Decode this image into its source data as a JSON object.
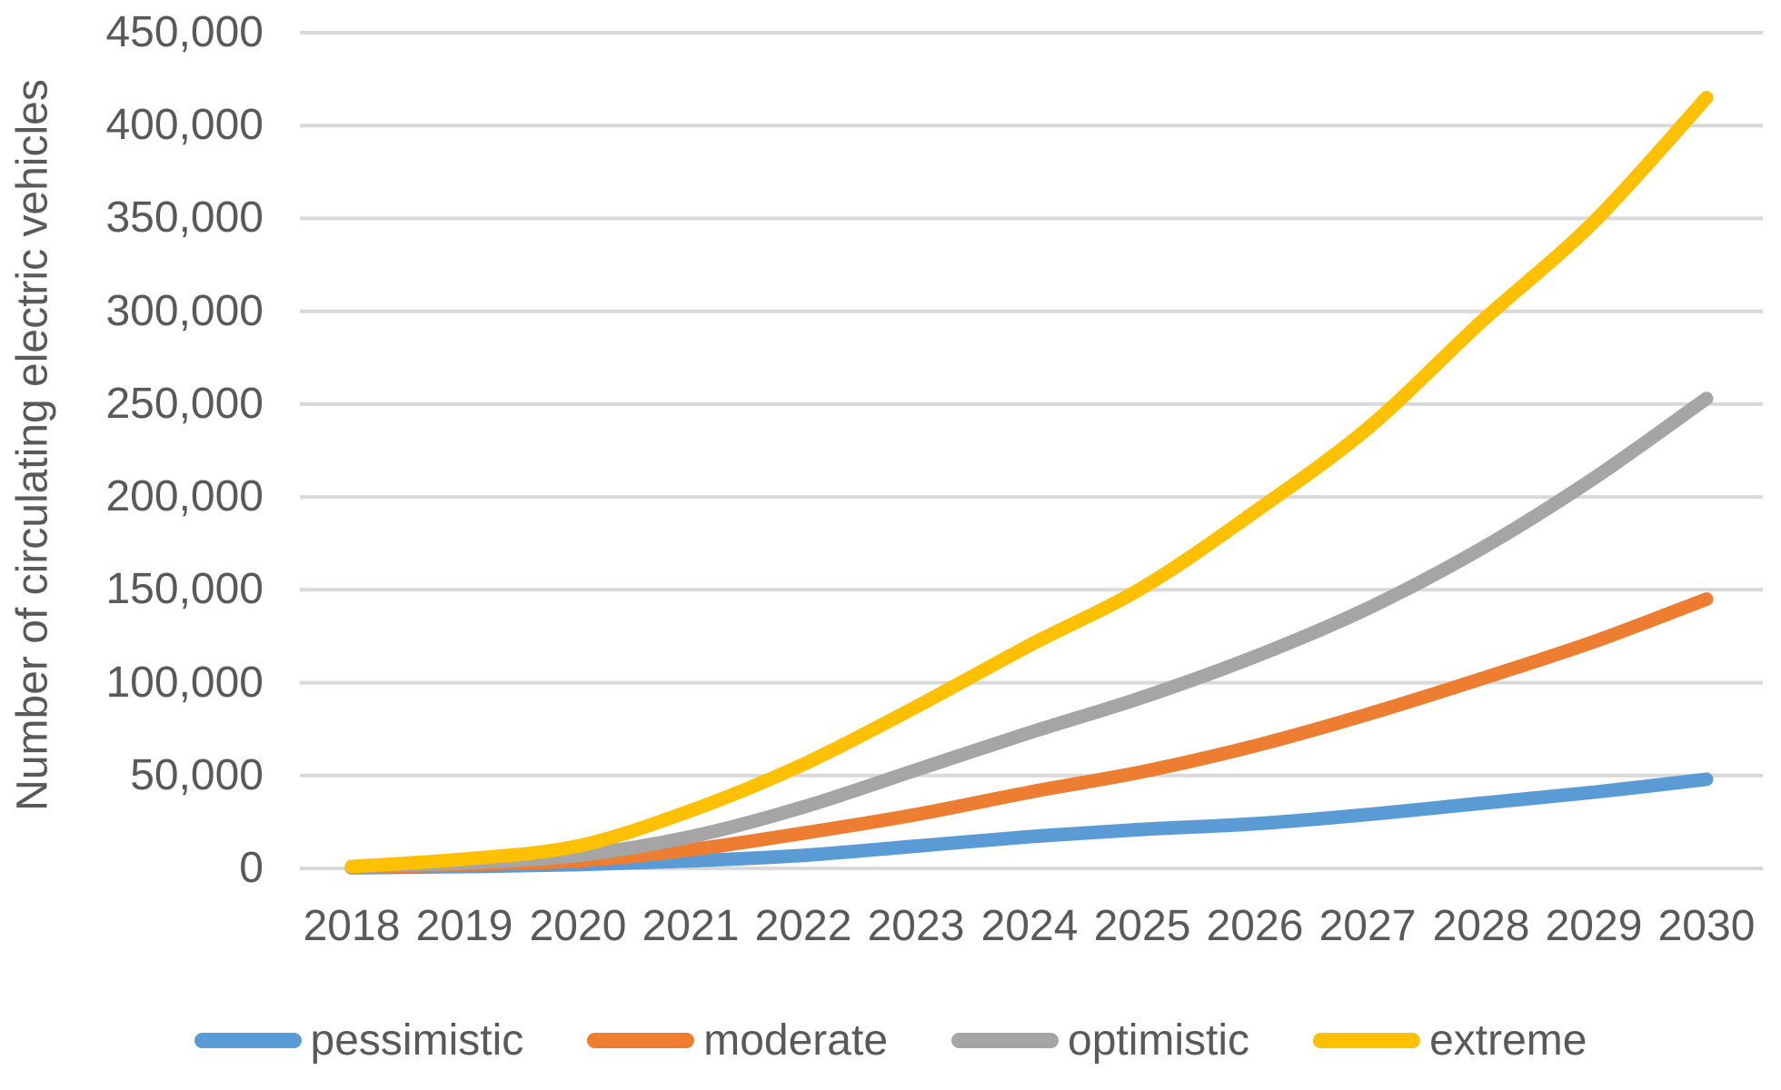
{
  "chart_data": {
    "type": "line",
    "title": "",
    "ylabel": "Number of circulating electric vehicles",
    "xlabel": "",
    "categories": [
      "2018",
      "2019",
      "2020",
      "2021",
      "2022",
      "2023",
      "2024",
      "2025",
      "2026",
      "2027",
      "2028",
      "2029",
      "2030"
    ],
    "series": [
      {
        "name": "pessimistic",
        "color": "#5B9BD5",
        "values": [
          300,
          1000,
          2000,
          4000,
          7000,
          12000,
          17000,
          21000,
          24000,
          29000,
          35000,
          41000,
          48000
        ]
      },
      {
        "name": "moderate",
        "color": "#ED7D31",
        "values": [
          500,
          2000,
          4000,
          10000,
          19000,
          29000,
          41000,
          52000,
          66000,
          83000,
          102000,
          122000,
          145000
        ]
      },
      {
        "name": "optimistic",
        "color": "#A5A5A5",
        "values": [
          1000,
          3000,
          7000,
          17000,
          33000,
          53000,
          73000,
          92000,
          114000,
          140000,
          172000,
          210000,
          253000
        ]
      },
      {
        "name": "extreme",
        "color": "#FFC000",
        "values": [
          1000,
          5000,
          12000,
          31000,
          56000,
          87000,
          120000,
          151000,
          192000,
          237000,
          294000,
          348000,
          415000
        ]
      }
    ],
    "y_ticks": [
      {
        "value": 0,
        "label": "0"
      },
      {
        "value": 50000,
        "label": "50,000"
      },
      {
        "value": 100000,
        "label": "100,000"
      },
      {
        "value": 150000,
        "label": "150,000"
      },
      {
        "value": 200000,
        "label": "200,000"
      },
      {
        "value": 250000,
        "label": "250,000"
      },
      {
        "value": 300000,
        "label": "300,000"
      },
      {
        "value": 350000,
        "label": "350,000"
      },
      {
        "value": 400000,
        "label": "400,000"
      },
      {
        "value": 450000,
        "label": "450,000"
      }
    ],
    "ylim": [
      0,
      450000
    ],
    "grid": true,
    "gridline_color": "#D9D9D9",
    "text_color": "#595959",
    "legend_position": "bottom",
    "legend": [
      "pessimistic",
      "moderate",
      "optimistic",
      "extreme"
    ]
  }
}
